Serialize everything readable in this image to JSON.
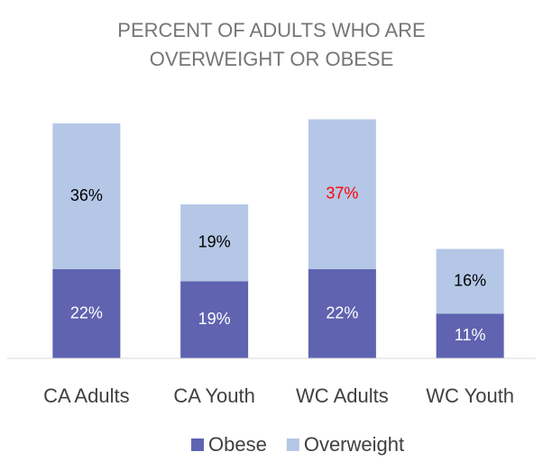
{
  "chart_data": {
    "type": "stacked-bar",
    "title": [
      "PERCENT OF ADULTS WHO ARE",
      "OVERWEIGHT OR OBESE"
    ],
    "categories": [
      "CA Adults",
      "CA Youth",
      "WC Adults",
      "WC Youth"
    ],
    "series": [
      {
        "name": "Obese",
        "color": "#5f63b0",
        "values": [
          22,
          19,
          22,
          11
        ],
        "value_labels": [
          "22%",
          "19%",
          "22%",
          "11%"
        ],
        "label_colors": [
          "#ffffff",
          "#ffffff",
          "#ffffff",
          "#ffffff"
        ]
      },
      {
        "name": "Overweight",
        "color": "#b4c7e7",
        "values": [
          36,
          19,
          37,
          16
        ],
        "value_labels": [
          "36%",
          "19%",
          "37%",
          "16%"
        ],
        "label_colors": [
          "#000000",
          "#000000",
          "#ff0000",
          "#000000"
        ]
      }
    ],
    "ylim": [
      0,
      60
    ],
    "legend": "bottom"
  }
}
